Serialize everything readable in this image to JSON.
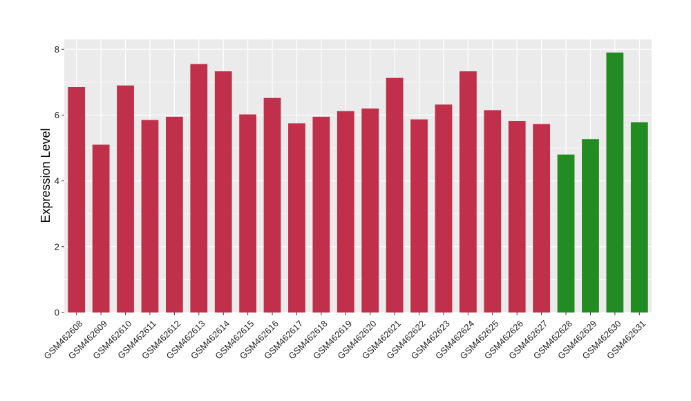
{
  "chart_data": {
    "type": "bar",
    "title": "",
    "xlabel": "",
    "ylabel": "Expression Level",
    "ylim": [
      0,
      8.3
    ],
    "yticks": [
      0,
      2,
      4,
      6,
      8
    ],
    "grid": true,
    "categories": [
      "GSM462608",
      "GSM462609",
      "GSM462610",
      "GSM462611",
      "GSM462612",
      "GSM462613",
      "GSM462614",
      "GSM462615",
      "GSM462616",
      "GSM462617",
      "GSM462618",
      "GSM462619",
      "GSM462620",
      "GSM462621",
      "GSM462622",
      "GSM462623",
      "GSM462624",
      "GSM462625",
      "GSM462626",
      "GSM462627",
      "GSM462628",
      "GSM462629",
      "GSM462630",
      "GSM462631"
    ],
    "values": [
      6.85,
      5.1,
      6.9,
      5.85,
      5.95,
      7.55,
      7.33,
      6.02,
      6.52,
      5.75,
      5.95,
      6.12,
      6.2,
      7.13,
      5.87,
      6.32,
      7.33,
      6.15,
      5.82,
      5.73,
      4.8,
      5.27,
      7.9,
      5.78
    ],
    "bar_colors": [
      "#c0304a",
      "#c0304a",
      "#c0304a",
      "#c0304a",
      "#c0304a",
      "#c0304a",
      "#c0304a",
      "#c0304a",
      "#c0304a",
      "#c0304a",
      "#c0304a",
      "#c0304a",
      "#c0304a",
      "#c0304a",
      "#c0304a",
      "#c0304a",
      "#c0304a",
      "#c0304a",
      "#c0304a",
      "#c0304a",
      "#228b22",
      "#228b22",
      "#228b22",
      "#228b22"
    ],
    "panel_background": "#ebebeb",
    "gridline_color": "#ffffff"
  }
}
